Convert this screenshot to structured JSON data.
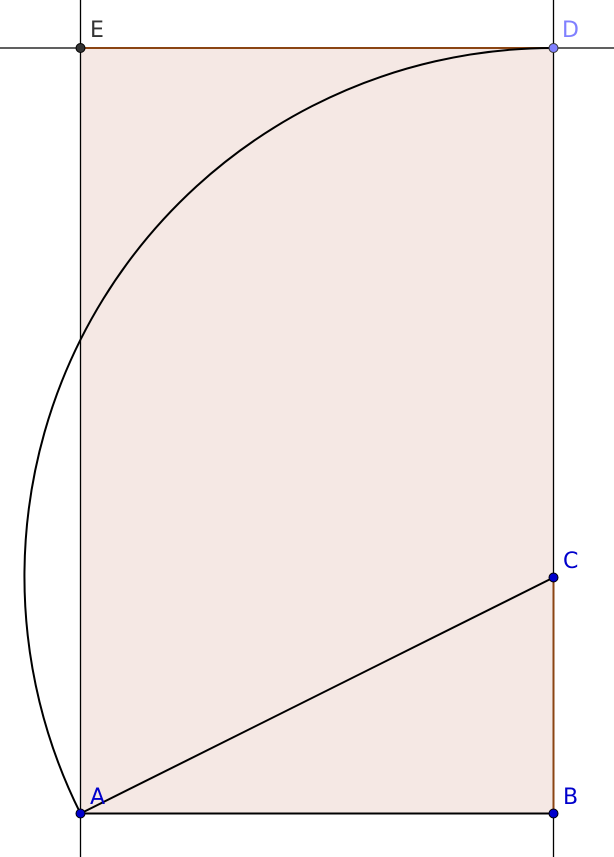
{
  "colors": {
    "rectangle_fill": "#f5e8e4",
    "brown_segment": "#8b4513",
    "black_line": "#000000",
    "blue_point": "#0000cc",
    "light_blue_point": "#8080ff",
    "dark_point": "#333333"
  },
  "points": {
    "A": {
      "label": "A",
      "color": "#0000cc"
    },
    "B": {
      "label": "B",
      "color": "#0000cc"
    },
    "C": {
      "label": "C",
      "color": "#0000cc"
    },
    "D": {
      "label": "D",
      "color": "#8080ff"
    },
    "E": {
      "label": "E",
      "color": "#333333"
    }
  }
}
